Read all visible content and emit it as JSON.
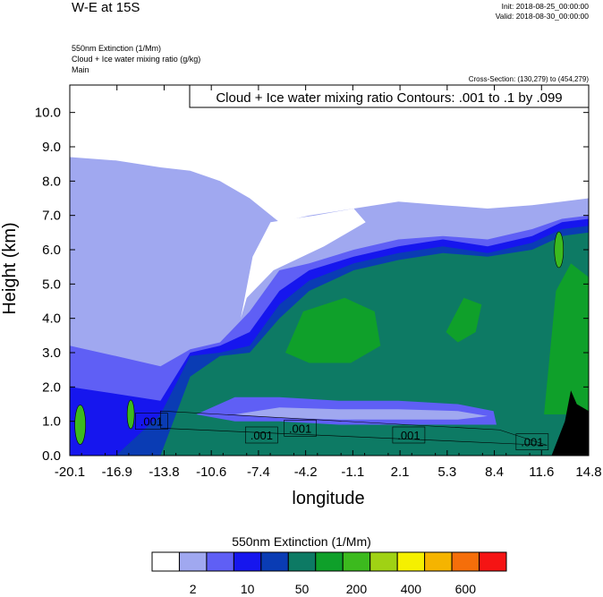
{
  "header": {
    "title": "W-E at 15S",
    "init": "Init: 2018-08-25_00:00:00",
    "valid": "Valid: 2018-08-30_00:00:00",
    "field_line": "550nm Extinction   (1/Mm)",
    "contour_line": "Cloud + Ice water mixing ratio   (g/kg)",
    "run_line": "Main",
    "cross_section": "Cross-Section: (130,279) to (454,279)"
  },
  "chart_data": {
    "type": "heatmap",
    "title": "Cloud + Ice water mixing ratio Contours: .001 to .1 by .099",
    "xlabel": "longitude",
    "ylabel": "Height (km)",
    "xlim": [
      -20.1,
      14.8
    ],
    "ylim": [
      0.0,
      10.8
    ],
    "xticks": [
      "-20.1",
      "-16.9",
      "-13.8",
      "-10.6",
      "-7.4",
      "-4.2",
      "-1.1",
      "2.1",
      "5.3",
      "8.4",
      "11.6",
      "14.8"
    ],
    "yticks": [
      0.0,
      1.0,
      2.0,
      3.0,
      4.0,
      5.0,
      6.0,
      7.0,
      8.0,
      9.0,
      10.0
    ],
    "ytick_labels": [
      "0.0",
      "1.0",
      "2.0",
      "3.0",
      "4.0",
      "5.0",
      "6.0",
      "7.0",
      "8.0",
      "9.0",
      "10.0"
    ],
    "contour_labels": [
      {
        "text": ".001",
        "lon": -14.6,
        "height": 1.0
      },
      {
        "text": ".001",
        "lon": -7.2,
        "height": 0.6
      },
      {
        "text": ".001",
        "lon": -4.6,
        "height": 0.8
      },
      {
        "text": ".001",
        "lon": 2.7,
        "height": 0.6
      },
      {
        "text": ".001",
        "lon": 11.0,
        "height": 0.4
      }
    ],
    "colorbar": {
      "title": "550nm Extinction  (1/Mm)",
      "colors": [
        "#ffffff",
        "#a0a8f0",
        "#5f5ff5",
        "#1616ee",
        "#0a3cb4",
        "#0d7a64",
        "#0fa02a",
        "#3cba1e",
        "#a0d214",
        "#f5f000",
        "#f5b400",
        "#f56e0a",
        "#f51414"
      ],
      "labels": [
        {
          "text": "2",
          "boundary": 1
        },
        {
          "text": "10",
          "boundary": 3
        },
        {
          "text": "50",
          "boundary": 5
        },
        {
          "text": "200",
          "boundary": 7
        },
        {
          "text": "400",
          "boundary": 9
        },
        {
          "text": "600",
          "boundary": 11
        }
      ]
    },
    "fill": {
      "levels_profile": [
        {
          "lon": -20.1,
          "t1": 8.7,
          "t2": 3.2,
          "t3": 2.0,
          "t4": 0,
          "t5": 0
        },
        {
          "lon": -17.0,
          "t1": 8.6,
          "t2": 2.9,
          "t3": 1.8,
          "t4": 0,
          "t5": 0
        },
        {
          "lon": -14.0,
          "t1": 8.4,
          "t2": 2.6,
          "t3": 1.6,
          "t4": 1.2,
          "t5": 0
        },
        {
          "lon": -12.0,
          "t1": 8.3,
          "t2": 3.1,
          "t3": 3.0,
          "t4": 2.9,
          "t5": 2.3
        },
        {
          "lon": -10.0,
          "t1": 8.0,
          "t2": 3.3,
          "t3": 3.2,
          "t4": 3.0,
          "t5": 2.9
        },
        {
          "lon": -8.0,
          "t1": 7.5,
          "t2": 4.2,
          "t3": 3.6,
          "t4": 3.2,
          "t5": 3.0
        },
        {
          "lon": -6.0,
          "t1": 6.8,
          "t2": 5.4,
          "t3": 4.8,
          "t4": 4.4,
          "t5": 4.0
        },
        {
          "lon": -4.0,
          "t1": 7.0,
          "t2": 5.6,
          "t3": 5.4,
          "t4": 5.1,
          "t5": 4.8
        },
        {
          "lon": -1.0,
          "t1": 7.2,
          "t2": 6.0,
          "t3": 5.8,
          "t4": 5.6,
          "t5": 5.4
        },
        {
          "lon": 2.0,
          "t1": 7.4,
          "t2": 6.3,
          "t3": 6.1,
          "t4": 5.9,
          "t5": 5.7
        },
        {
          "lon": 5.0,
          "t1": 7.3,
          "t2": 6.4,
          "t3": 6.3,
          "t4": 6.1,
          "t5": 5.9
        },
        {
          "lon": 8.0,
          "t1": 7.2,
          "t2": 6.3,
          "t3": 6.1,
          "t4": 5.9,
          "t5": 5.8
        },
        {
          "lon": 11.0,
          "t1": 7.3,
          "t2": 6.6,
          "t3": 6.4,
          "t4": 6.2,
          "t5": 6.0
        },
        {
          "lon": 13.0,
          "t1": 7.4,
          "t2": 6.9,
          "t3": 6.8,
          "t4": 6.6,
          "t5": 6.4
        },
        {
          "lon": 14.8,
          "t1": 7.5,
          "t2": 7.0,
          "t3": 6.9,
          "t4": 6.7,
          "t5": 6.5
        }
      ]
    }
  }
}
